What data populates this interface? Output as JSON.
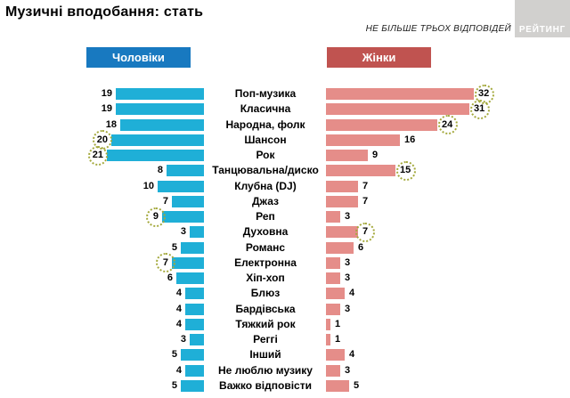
{
  "page": {
    "title": "Музичні вподобання: стать",
    "note": "НЕ БІЛЬШЕ ТРЬОХ ВІДПОВІДЕЙ",
    "logo": "РЕЙТИНГ"
  },
  "chart_data": {
    "type": "bar",
    "orientation": "horizontal-diverging",
    "title": "Музичні вподобання: стать",
    "note": "НЕ БІЛЬШЕ ТРЬОХ ВІДПОВІДЕЙ",
    "xlim": [
      0,
      35
    ],
    "value_labels": true,
    "grid": false,
    "highlight_circle_color": "#a3a83b",
    "categories": [
      "Поп-музика",
      "Класична",
      "Народна, фолк",
      "Шансон",
      "Рок",
      "Танцювальна/диско",
      "Клубна (DJ)",
      "Джаз",
      "Реп",
      "Духовна",
      "Романс",
      "Електронна",
      "Хіп-хоп",
      "Блюз",
      "Бардівська",
      "Тяжкий рок",
      "Реггі",
      "Інший",
      "Не люблю музику",
      "Важко відповісти"
    ],
    "series": [
      {
        "name": "Чоловіки",
        "color": "#1fafd7",
        "header_bg": "#1879c0",
        "values": [
          19,
          19,
          18,
          20,
          21,
          8,
          10,
          7,
          9,
          3,
          5,
          7,
          6,
          4,
          4,
          4,
          3,
          5,
          4,
          5
        ],
        "circled": [
          false,
          false,
          false,
          true,
          true,
          false,
          false,
          false,
          true,
          false,
          false,
          true,
          false,
          false,
          false,
          false,
          false,
          false,
          false,
          false
        ]
      },
      {
        "name": "Жінки",
        "color": "#e58d89",
        "header_bg": "#c05350",
        "values": [
          32,
          31,
          24,
          16,
          9,
          15,
          7,
          7,
          3,
          7,
          6,
          3,
          3,
          4,
          3,
          1,
          1,
          4,
          3,
          5
        ],
        "circled": [
          true,
          true,
          true,
          false,
          false,
          true,
          false,
          false,
          false,
          true,
          false,
          false,
          false,
          false,
          false,
          false,
          false,
          false,
          false,
          false
        ]
      }
    ]
  }
}
